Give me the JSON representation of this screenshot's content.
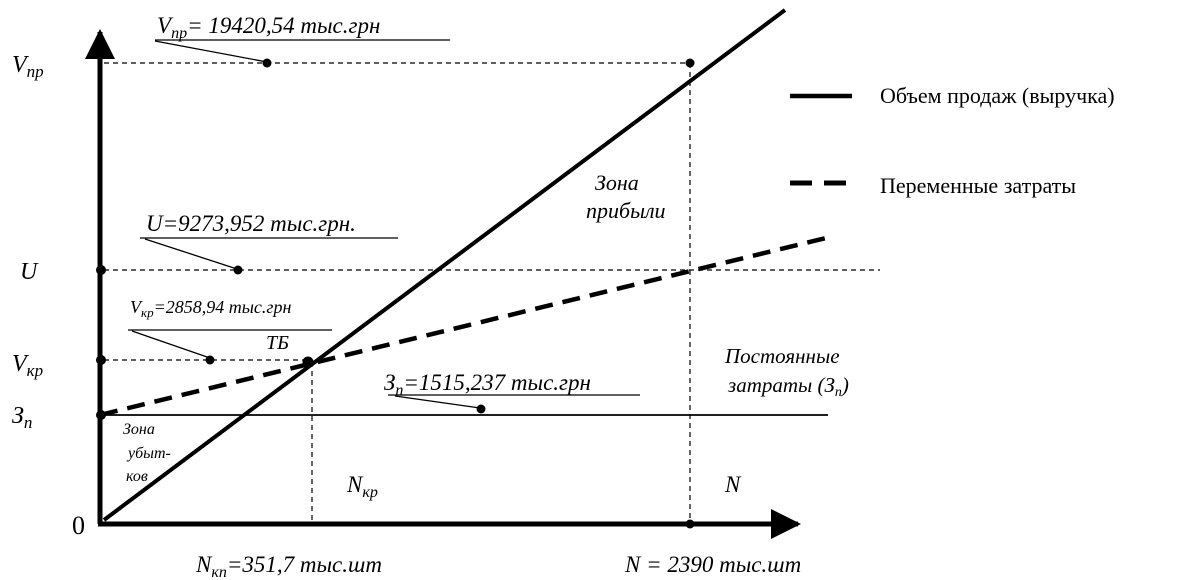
{
  "axes": {
    "origin_label": "0",
    "y_labels": {
      "vpr": {
        "main": "V",
        "sub": "пр"
      },
      "u": {
        "main": "U"
      },
      "vkr": {
        "main": "V",
        "sub": "кр"
      },
      "zp": {
        "main": "З",
        "sub": "п"
      }
    },
    "x_labels": {
      "nkr_under": {
        "main": "N",
        "sub": "кп",
        "rest": "=351,7 тыс.шт"
      },
      "n_under": "N = 2390 тыс.шт",
      "nkr_inside": {
        "main": "N",
        "sub": "кр"
      },
      "n_inside": "N"
    }
  },
  "annotations": {
    "vpr_value": {
      "main": "V",
      "sub": "пр",
      "rest": "= 19420,54 тыс.грн"
    },
    "u_value": "U=9273,952 тыс.грн.",
    "vkr_value": {
      "main": "V",
      "sub": "кр",
      "rest": "=2858,94 тыс.грн"
    },
    "zp_value": {
      "main": "З",
      "sub": "п",
      "rest": "=1515,237 тыс.грн"
    },
    "tb": "ТБ",
    "profit_zone": [
      "Зона",
      "прибыли"
    ],
    "loss_zone": [
      "Зона",
      "убыт-",
      "ков"
    ],
    "fixed_costs": {
      "line1": "Постоянные",
      "line2_main": "затраты (З",
      "line2_sub": "п",
      "line2_end": ")"
    }
  },
  "legend": {
    "items": [
      {
        "label": "Объем продаж (выручка)",
        "style": "solid"
      },
      {
        "label": "Переменные затраты",
        "style": "dashed"
      }
    ]
  }
}
